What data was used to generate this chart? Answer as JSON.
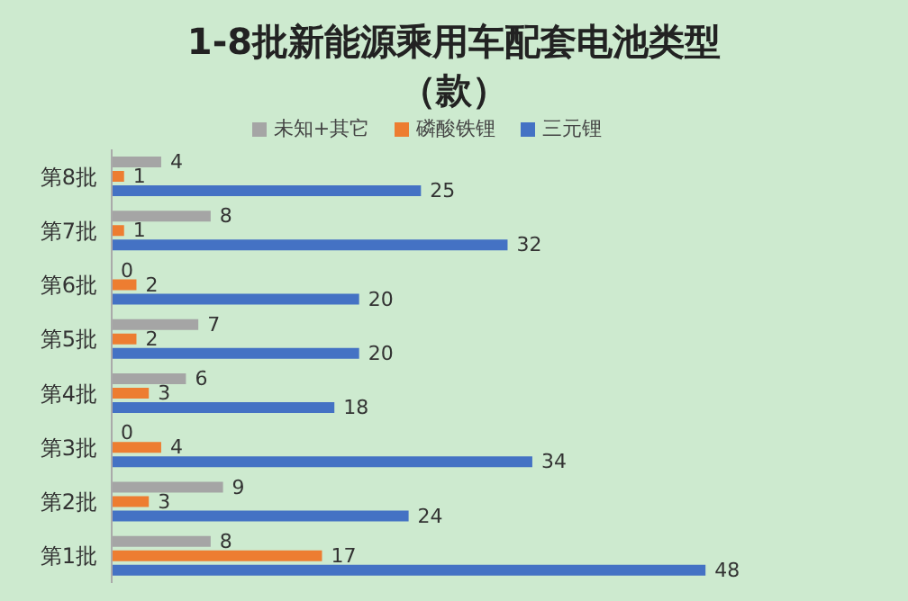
{
  "chart_data": {
    "type": "bar",
    "orientation": "horizontal",
    "title": "1-8批新能源乘用车配套电池类型",
    "subtitle": "（款）",
    "categories": [
      "第8批",
      "第7批",
      "第6批",
      "第5批",
      "第4批",
      "第3批",
      "第2批",
      "第1批"
    ],
    "series": [
      {
        "name": "未知+其它",
        "color": "#a5a5a5",
        "values": [
          4,
          8,
          0,
          7,
          6,
          0,
          9,
          8
        ]
      },
      {
        "name": "磷酸铁锂",
        "color": "#ed7d31",
        "values": [
          1,
          1,
          2,
          2,
          3,
          4,
          3,
          17
        ]
      },
      {
        "name": "三元锂",
        "color": "#4472c4",
        "values": [
          25,
          32,
          20,
          20,
          18,
          34,
          24,
          48
        ]
      }
    ],
    "data_labels": true,
    "legend": "top",
    "grid": false
  }
}
